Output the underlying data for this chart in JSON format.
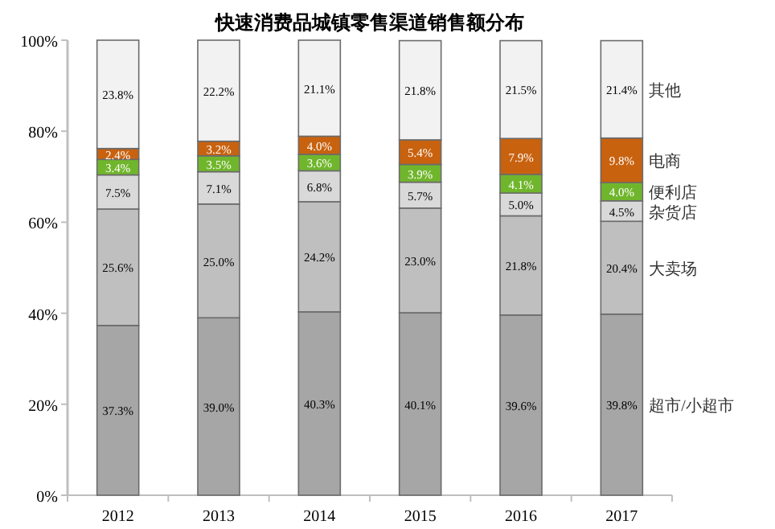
{
  "chart_data": {
    "type": "bar",
    "stacked": true,
    "title": "快速消费品城镇零售渠道销售额分布",
    "categories": [
      "2012",
      "2013",
      "2014",
      "2015",
      "2016",
      "2017"
    ],
    "ylim": [
      0,
      100
    ],
    "yticks": [
      {
        "value": 0,
        "label": "0%"
      },
      {
        "value": 20,
        "label": "20%"
      },
      {
        "value": 40,
        "label": "40%"
      },
      {
        "value": 60,
        "label": "60%"
      },
      {
        "value": 80,
        "label": "80%"
      },
      {
        "value": 100,
        "label": "100%"
      }
    ],
    "grid": false,
    "series": [
      {
        "name": "超市/小超市",
        "color": "#a6a6a6",
        "values": [
          37.3,
          39.0,
          40.3,
          40.1,
          39.6,
          39.8
        ],
        "value_labels": [
          "37.3%",
          "39.0%",
          "40.3%",
          "40.1%",
          "39.6%",
          "39.8%"
        ]
      },
      {
        "name": "大卖场",
        "color": "#bfbfbf",
        "values": [
          25.6,
          25.0,
          24.2,
          23.0,
          21.8,
          20.4
        ],
        "value_labels": [
          "25.6%",
          "25.0%",
          "24.2%",
          "23.0%",
          "21.8%",
          "20.4%"
        ]
      },
      {
        "name": "杂货店",
        "color": "#d9d9d9",
        "values": [
          7.5,
          7.1,
          6.8,
          5.7,
          5.0,
          4.5
        ],
        "value_labels": [
          "7.5%",
          "7.1%",
          "6.8%",
          "5.7%",
          "5.0%",
          "4.5%"
        ]
      },
      {
        "name": "便利店",
        "color": "#70b62c",
        "values": [
          3.4,
          3.5,
          3.6,
          3.9,
          4.1,
          4.0
        ],
        "value_labels": [
          "3.4%",
          "3.5%",
          "3.6%",
          "3.9%",
          "4.1%",
          "4.0%"
        ]
      },
      {
        "name": "电商",
        "color": "#c8620f",
        "values": [
          2.4,
          3.2,
          4.0,
          5.4,
          7.9,
          9.8
        ],
        "value_labels": [
          "2.4%",
          "3.2%",
          "4.0%",
          "5.4%",
          "7.9%",
          "9.8%"
        ]
      },
      {
        "name": "其他",
        "color": "#f2f2f2",
        "values": [
          23.8,
          22.2,
          21.1,
          21.8,
          21.5,
          21.4
        ],
        "value_labels": [
          "23.8%",
          "22.2%",
          "21.1%",
          "21.8%",
          "21.5%",
          "21.4%"
        ]
      }
    ]
  }
}
